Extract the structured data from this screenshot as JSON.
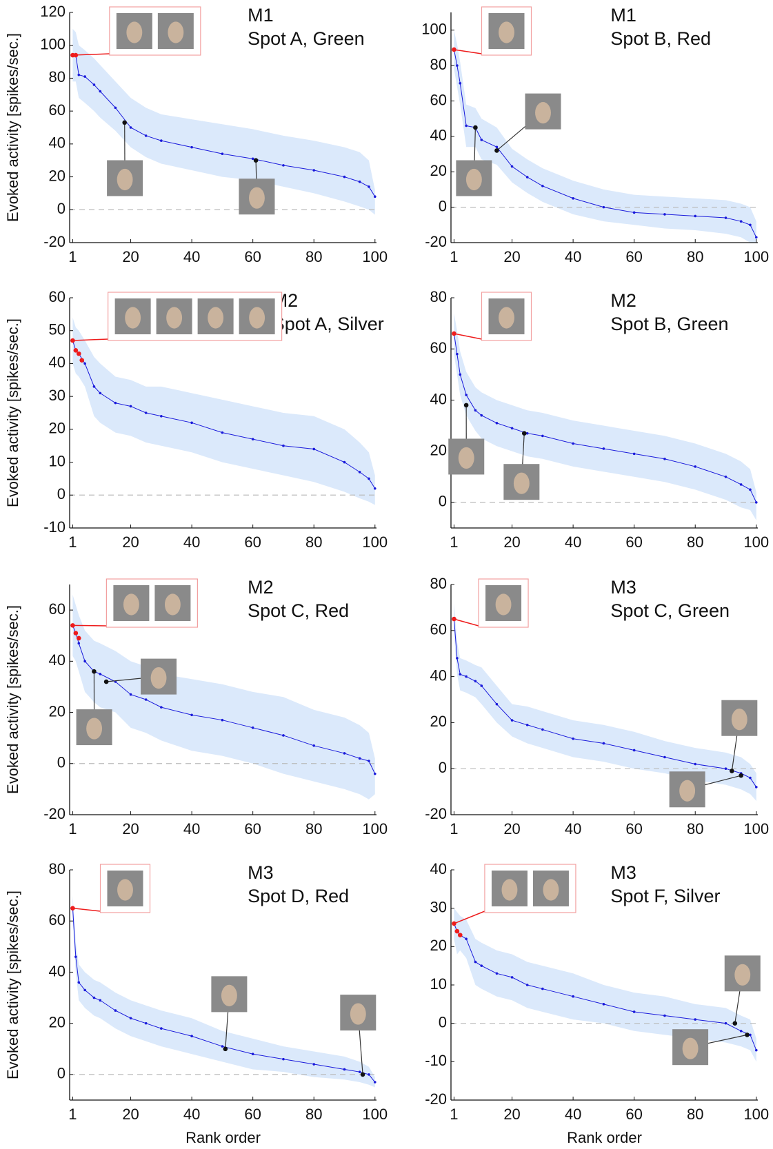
{
  "chart_data": [
    {
      "type": "line",
      "title": "M1",
      "subtitle": "Spot A, Green",
      "ylabel": "Evoked activity [spikes/sec.]",
      "x": [
        1,
        2,
        3,
        5,
        8,
        10,
        15,
        20,
        25,
        30,
        40,
        50,
        60,
        70,
        80,
        90,
        95,
        98,
        100
      ],
      "series": [
        {
          "color": "#1a1adb",
          "values": [
            94,
            94,
            82,
            81,
            76,
            72,
            62,
            50,
            45,
            42,
            38,
            34,
            31,
            27,
            24,
            20,
            17,
            14,
            8
          ]
        }
      ],
      "band": {
        "color": "#dbe9fb",
        "upper": [
          110,
          108,
          100,
          97,
          92,
          88,
          78,
          68,
          62,
          58,
          55,
          52,
          49,
          45,
          42,
          38,
          35,
          30,
          12
        ],
        "lower": [
          78,
          78,
          68,
          65,
          60,
          56,
          48,
          38,
          32,
          28,
          24,
          20,
          18,
          14,
          10,
          5,
          2,
          0,
          -3
        ]
      },
      "points": [
        {
          "color": "#ee1c1c",
          "x": [
            1,
            2
          ],
          "values": [
            94,
            94
          ]
        },
        {
          "color": "#111111",
          "x": [
            18,
            61
          ],
          "values": [
            53,
            30
          ]
        }
      ],
      "xlim": [
        0,
        100.5
      ],
      "xticks": [
        1,
        20,
        40,
        60,
        80,
        100
      ],
      "ylim": [
        -20,
        120
      ],
      "yticks": [
        -20,
        0,
        20,
        40,
        60,
        80,
        100,
        120
      ],
      "reference_line": 0
    },
    {
      "type": "line",
      "title": "M1",
      "subtitle": "Spot B, Red",
      "x": [
        1,
        2,
        3,
        5,
        8,
        10,
        15,
        20,
        25,
        30,
        40,
        50,
        60,
        70,
        80,
        90,
        95,
        98,
        100
      ],
      "series": [
        {
          "color": "#1a1adb",
          "values": [
            89,
            80,
            70,
            46,
            45,
            38,
            34,
            23,
            17,
            12,
            5,
            0,
            -3,
            -4,
            -5,
            -6,
            -8,
            -10,
            -17
          ]
        }
      ],
      "band": {
        "color": "#dbe9fb",
        "upper": [
          100,
          92,
          82,
          58,
          56,
          50,
          45,
          33,
          27,
          22,
          15,
          10,
          7,
          6,
          5,
          4,
          2,
          0,
          -8
        ],
        "lower": [
          78,
          68,
          58,
          34,
          34,
          27,
          24,
          14,
          8,
          3,
          -4,
          -8,
          -10,
          -12,
          -13,
          -15,
          -17,
          -20,
          -20
        ]
      },
      "points": [
        {
          "color": "#ee1c1c",
          "x": [
            1
          ],
          "values": [
            89
          ]
        },
        {
          "color": "#111111",
          "x": [
            8,
            15
          ],
          "values": [
            45,
            32
          ]
        }
      ],
      "xlim": [
        0,
        100.5
      ],
      "xticks": [
        1,
        20,
        40,
        60,
        80,
        100
      ],
      "ylim": [
        -20,
        110
      ],
      "yticks": [
        -20,
        0,
        20,
        40,
        60,
        80,
        100
      ],
      "reference_line": 0
    },
    {
      "type": "line",
      "title": "M2",
      "subtitle": "Spot A, Silver",
      "ylabel": "Evoked activity [spikes/sec.]",
      "x": [
        1,
        2,
        3,
        5,
        8,
        10,
        15,
        20,
        25,
        30,
        40,
        50,
        60,
        70,
        80,
        90,
        95,
        98,
        100
      ],
      "series": [
        {
          "color": "#1a1adb",
          "values": [
            47,
            44,
            43,
            40,
            33,
            31,
            28,
            27,
            25,
            24,
            22,
            19,
            17,
            15,
            14,
            10,
            7,
            5,
            2
          ]
        }
      ],
      "band": {
        "color": "#dbe9fb",
        "upper": [
          54,
          51,
          50,
          47,
          42,
          40,
          36,
          35,
          33,
          33,
          31,
          29,
          27,
          25,
          24,
          20,
          16,
          13,
          6
        ],
        "lower": [
          40,
          37,
          36,
          33,
          24,
          22,
          19,
          18,
          16,
          15,
          13,
          10,
          8,
          6,
          4,
          1,
          -1,
          -2,
          -3
        ]
      },
      "points": [
        {
          "color": "#ee1c1c",
          "x": [
            1,
            2,
            3,
            4
          ],
          "values": [
            47,
            44,
            43,
            41
          ]
        }
      ],
      "xlim": [
        0,
        100.5
      ],
      "xticks": [
        1,
        20,
        40,
        60,
        80,
        100
      ],
      "ylim": [
        -10,
        60
      ],
      "yticks": [
        -10,
        0,
        10,
        20,
        30,
        40,
        50,
        60
      ],
      "reference_line": 0
    },
    {
      "type": "line",
      "title": "M2",
      "subtitle": "Spot B, Green",
      "x": [
        1,
        2,
        3,
        5,
        8,
        10,
        15,
        20,
        25,
        30,
        40,
        50,
        60,
        70,
        80,
        90,
        95,
        98,
        100
      ],
      "series": [
        {
          "color": "#1a1adb",
          "values": [
            66,
            58,
            50,
            42,
            36,
            34,
            31,
            29,
            27,
            26,
            23,
            21,
            19,
            17,
            14,
            10,
            7,
            5,
            0
          ]
        }
      ],
      "band": {
        "color": "#dbe9fb",
        "upper": [
          74,
          67,
          59,
          51,
          45,
          43,
          40,
          38,
          36,
          35,
          32,
          30,
          28,
          26,
          23,
          19,
          16,
          13,
          4
        ],
        "lower": [
          58,
          50,
          42,
          34,
          28,
          25,
          22,
          20,
          18,
          17,
          14,
          12,
          10,
          8,
          5,
          1,
          -2,
          -3,
          -7
        ]
      },
      "points": [
        {
          "color": "#ee1c1c",
          "x": [
            1
          ],
          "values": [
            66
          ]
        },
        {
          "color": "#111111",
          "x": [
            5,
            24
          ],
          "values": [
            38,
            27
          ]
        }
      ],
      "xlim": [
        0,
        100.5
      ],
      "xticks": [
        1,
        20,
        40,
        60,
        80,
        100
      ],
      "ylim": [
        -10,
        80
      ],
      "yticks": [
        0,
        20,
        40,
        60,
        80
      ],
      "reference_line": 0
    },
    {
      "type": "line",
      "title": "M2",
      "subtitle": "Spot C, Red",
      "ylabel": "Evoked activity [spikes/sec.]",
      "x": [
        1,
        2,
        3,
        5,
        8,
        10,
        15,
        20,
        25,
        30,
        40,
        50,
        60,
        70,
        80,
        90,
        95,
        98,
        100
      ],
      "series": [
        {
          "color": "#1a1adb",
          "values": [
            54,
            51,
            47,
            40,
            36,
            35,
            32,
            27,
            25,
            22,
            19,
            17,
            14,
            11,
            7,
            4,
            2,
            1,
            -4
          ]
        }
      ],
      "band": {
        "color": "#dbe9fb",
        "upper": [
          66,
          62,
          58,
          52,
          48,
          47,
          44,
          40,
          38,
          35,
          33,
          31,
          28,
          26,
          21,
          18,
          15,
          12,
          2
        ],
        "lower": [
          42,
          40,
          36,
          28,
          24,
          22,
          20,
          14,
          12,
          9,
          5,
          3,
          0,
          -4,
          -7,
          -10,
          -12,
          -14,
          -12
        ]
      },
      "points": [
        {
          "color": "#ee1c1c",
          "x": [
            1,
            2,
            3
          ],
          "values": [
            54,
            51,
            49
          ]
        },
        {
          "color": "#111111",
          "x": [
            8,
            12
          ],
          "values": [
            36,
            32
          ]
        }
      ],
      "xlim": [
        0,
        100.5
      ],
      "xticks": [
        1,
        20,
        40,
        60,
        80,
        100
      ],
      "ylim": [
        -20,
        70
      ],
      "yticks": [
        -20,
        0,
        20,
        40,
        60
      ],
      "reference_line": 0
    },
    {
      "type": "line",
      "title": "M3",
      "subtitle": "Spot C, Green",
      "x": [
        1,
        2,
        3,
        5,
        8,
        10,
        15,
        20,
        25,
        30,
        40,
        50,
        60,
        70,
        80,
        90,
        95,
        98,
        100
      ],
      "series": [
        {
          "color": "#1a1adb",
          "values": [
            65,
            48,
            41,
            40,
            38,
            36,
            28,
            21,
            19,
            17,
            13,
            11,
            8,
            5,
            2,
            0,
            -2,
            -4,
            -8
          ]
        }
      ],
      "band": {
        "color": "#dbe9fb",
        "upper": [
          72,
          55,
          48,
          47,
          45,
          44,
          36,
          28,
          27,
          25,
          21,
          19,
          16,
          12,
          9,
          7,
          5,
          2,
          -2
        ],
        "lower": [
          58,
          41,
          34,
          33,
          31,
          28,
          20,
          14,
          11,
          9,
          5,
          3,
          0,
          -2,
          -5,
          -7,
          -9,
          -11,
          -14
        ]
      },
      "points": [
        {
          "color": "#ee1c1c",
          "x": [
            1
          ],
          "values": [
            65
          ]
        },
        {
          "color": "#111111",
          "x": [
            92,
            95
          ],
          "values": [
            -1,
            -3
          ]
        }
      ],
      "xlim": [
        0,
        100.5
      ],
      "xticks": [
        1,
        20,
        40,
        60,
        80,
        100
      ],
      "ylim": [
        -20,
        80
      ],
      "yticks": [
        -20,
        0,
        20,
        40,
        60,
        80
      ],
      "reference_line": 0
    },
    {
      "type": "line",
      "title": "M3",
      "subtitle": "Spot D, Red",
      "ylabel": "Evoked activity [spikes/sec.]",
      "xlabel": "Rank order",
      "x": [
        1,
        2,
        3,
        5,
        8,
        10,
        15,
        20,
        25,
        30,
        40,
        50,
        60,
        70,
        80,
        90,
        95,
        98,
        100
      ],
      "series": [
        {
          "color": "#1a1adb",
          "values": [
            65,
            46,
            36,
            33,
            30,
            29,
            25,
            22,
            20,
            18,
            15,
            11,
            8,
            6,
            4,
            2,
            1,
            0,
            -3
          ]
        }
      ],
      "band": {
        "color": "#dbe9fb",
        "upper": [
          70,
          52,
          43,
          40,
          37,
          36,
          32,
          29,
          27,
          25,
          22,
          17,
          14,
          11,
          9,
          7,
          5,
          3,
          -1
        ],
        "lower": [
          60,
          40,
          29,
          26,
          23,
          22,
          18,
          15,
          13,
          11,
          8,
          5,
          2,
          1,
          -1,
          -2,
          -3,
          -4,
          -5
        ]
      },
      "points": [
        {
          "color": "#ee1c1c",
          "x": [
            1
          ],
          "values": [
            65
          ]
        },
        {
          "color": "#111111",
          "x": [
            51,
            96
          ],
          "values": [
            10,
            0
          ]
        }
      ],
      "xlim": [
        0,
        100.5
      ],
      "xticks": [
        1,
        20,
        40,
        60,
        80,
        100
      ],
      "ylim": [
        -10,
        80
      ],
      "yticks": [
        0,
        20,
        40,
        60,
        80
      ],
      "reference_line": 0
    },
    {
      "type": "line",
      "title": "M3",
      "subtitle": "Spot F, Silver",
      "xlabel": "Rank order",
      "x": [
        1,
        2,
        3,
        5,
        8,
        10,
        15,
        20,
        25,
        30,
        40,
        50,
        60,
        70,
        80,
        90,
        95,
        98,
        100
      ],
      "series": [
        {
          "color": "#1a1adb",
          "values": [
            26,
            24,
            23,
            22,
            16,
            15,
            13,
            12,
            10,
            9,
            7,
            5,
            3,
            2,
            1,
            0,
            -2,
            -3,
            -7
          ]
        }
      ],
      "band": {
        "color": "#dbe9fb",
        "upper": [
          30,
          29,
          28,
          27,
          22,
          21,
          19,
          18,
          16,
          15,
          13,
          10,
          8,
          7,
          5,
          4,
          2,
          1,
          -4
        ],
        "lower": [
          22,
          18,
          19,
          17,
          10,
          9,
          7,
          6,
          4,
          3,
          1,
          0,
          -2,
          -3,
          -4,
          -5,
          -6,
          -7,
          -10
        ]
      },
      "points": [
        {
          "color": "#ee1c1c",
          "x": [
            1,
            2,
            3
          ],
          "values": [
            26,
            24,
            23
          ]
        },
        {
          "color": "#111111",
          "x": [
            93,
            97
          ],
          "values": [
            0,
            -3
          ]
        }
      ],
      "xlim": [
        0,
        100.5
      ],
      "xticks": [
        1,
        20,
        40,
        60,
        80,
        100
      ],
      "ylim": [
        -20,
        40
      ],
      "yticks": [
        -20,
        -10,
        0,
        10,
        20,
        30,
        40
      ],
      "reference_line": 0
    }
  ]
}
